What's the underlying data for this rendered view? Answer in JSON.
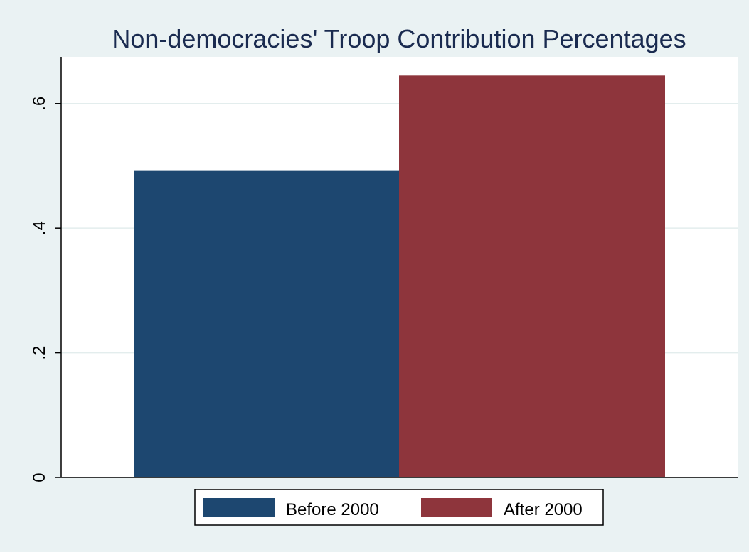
{
  "chart_data": {
    "type": "bar",
    "title": "Non-democracies' Troop Contribution Percentages",
    "xlabel": "",
    "ylabel": "",
    "ylim": [
      0,
      0.675
    ],
    "yticks": [
      0,
      0.2,
      0.4,
      0.6
    ],
    "ytick_labels": [
      "0",
      ".2",
      ".4",
      ".6"
    ],
    "grid": true,
    "legend_position": "bottom",
    "series": [
      {
        "name": "Before 2000",
        "value": 0.493,
        "color": "#1d4770"
      },
      {
        "name": "After 2000",
        "value": 0.645,
        "color": "#8e353c"
      }
    ]
  },
  "colors": {
    "background": "#eaf2f3",
    "plot_background": "#ffffff",
    "grid": "#e3eded",
    "title": "#1a2b50"
  }
}
